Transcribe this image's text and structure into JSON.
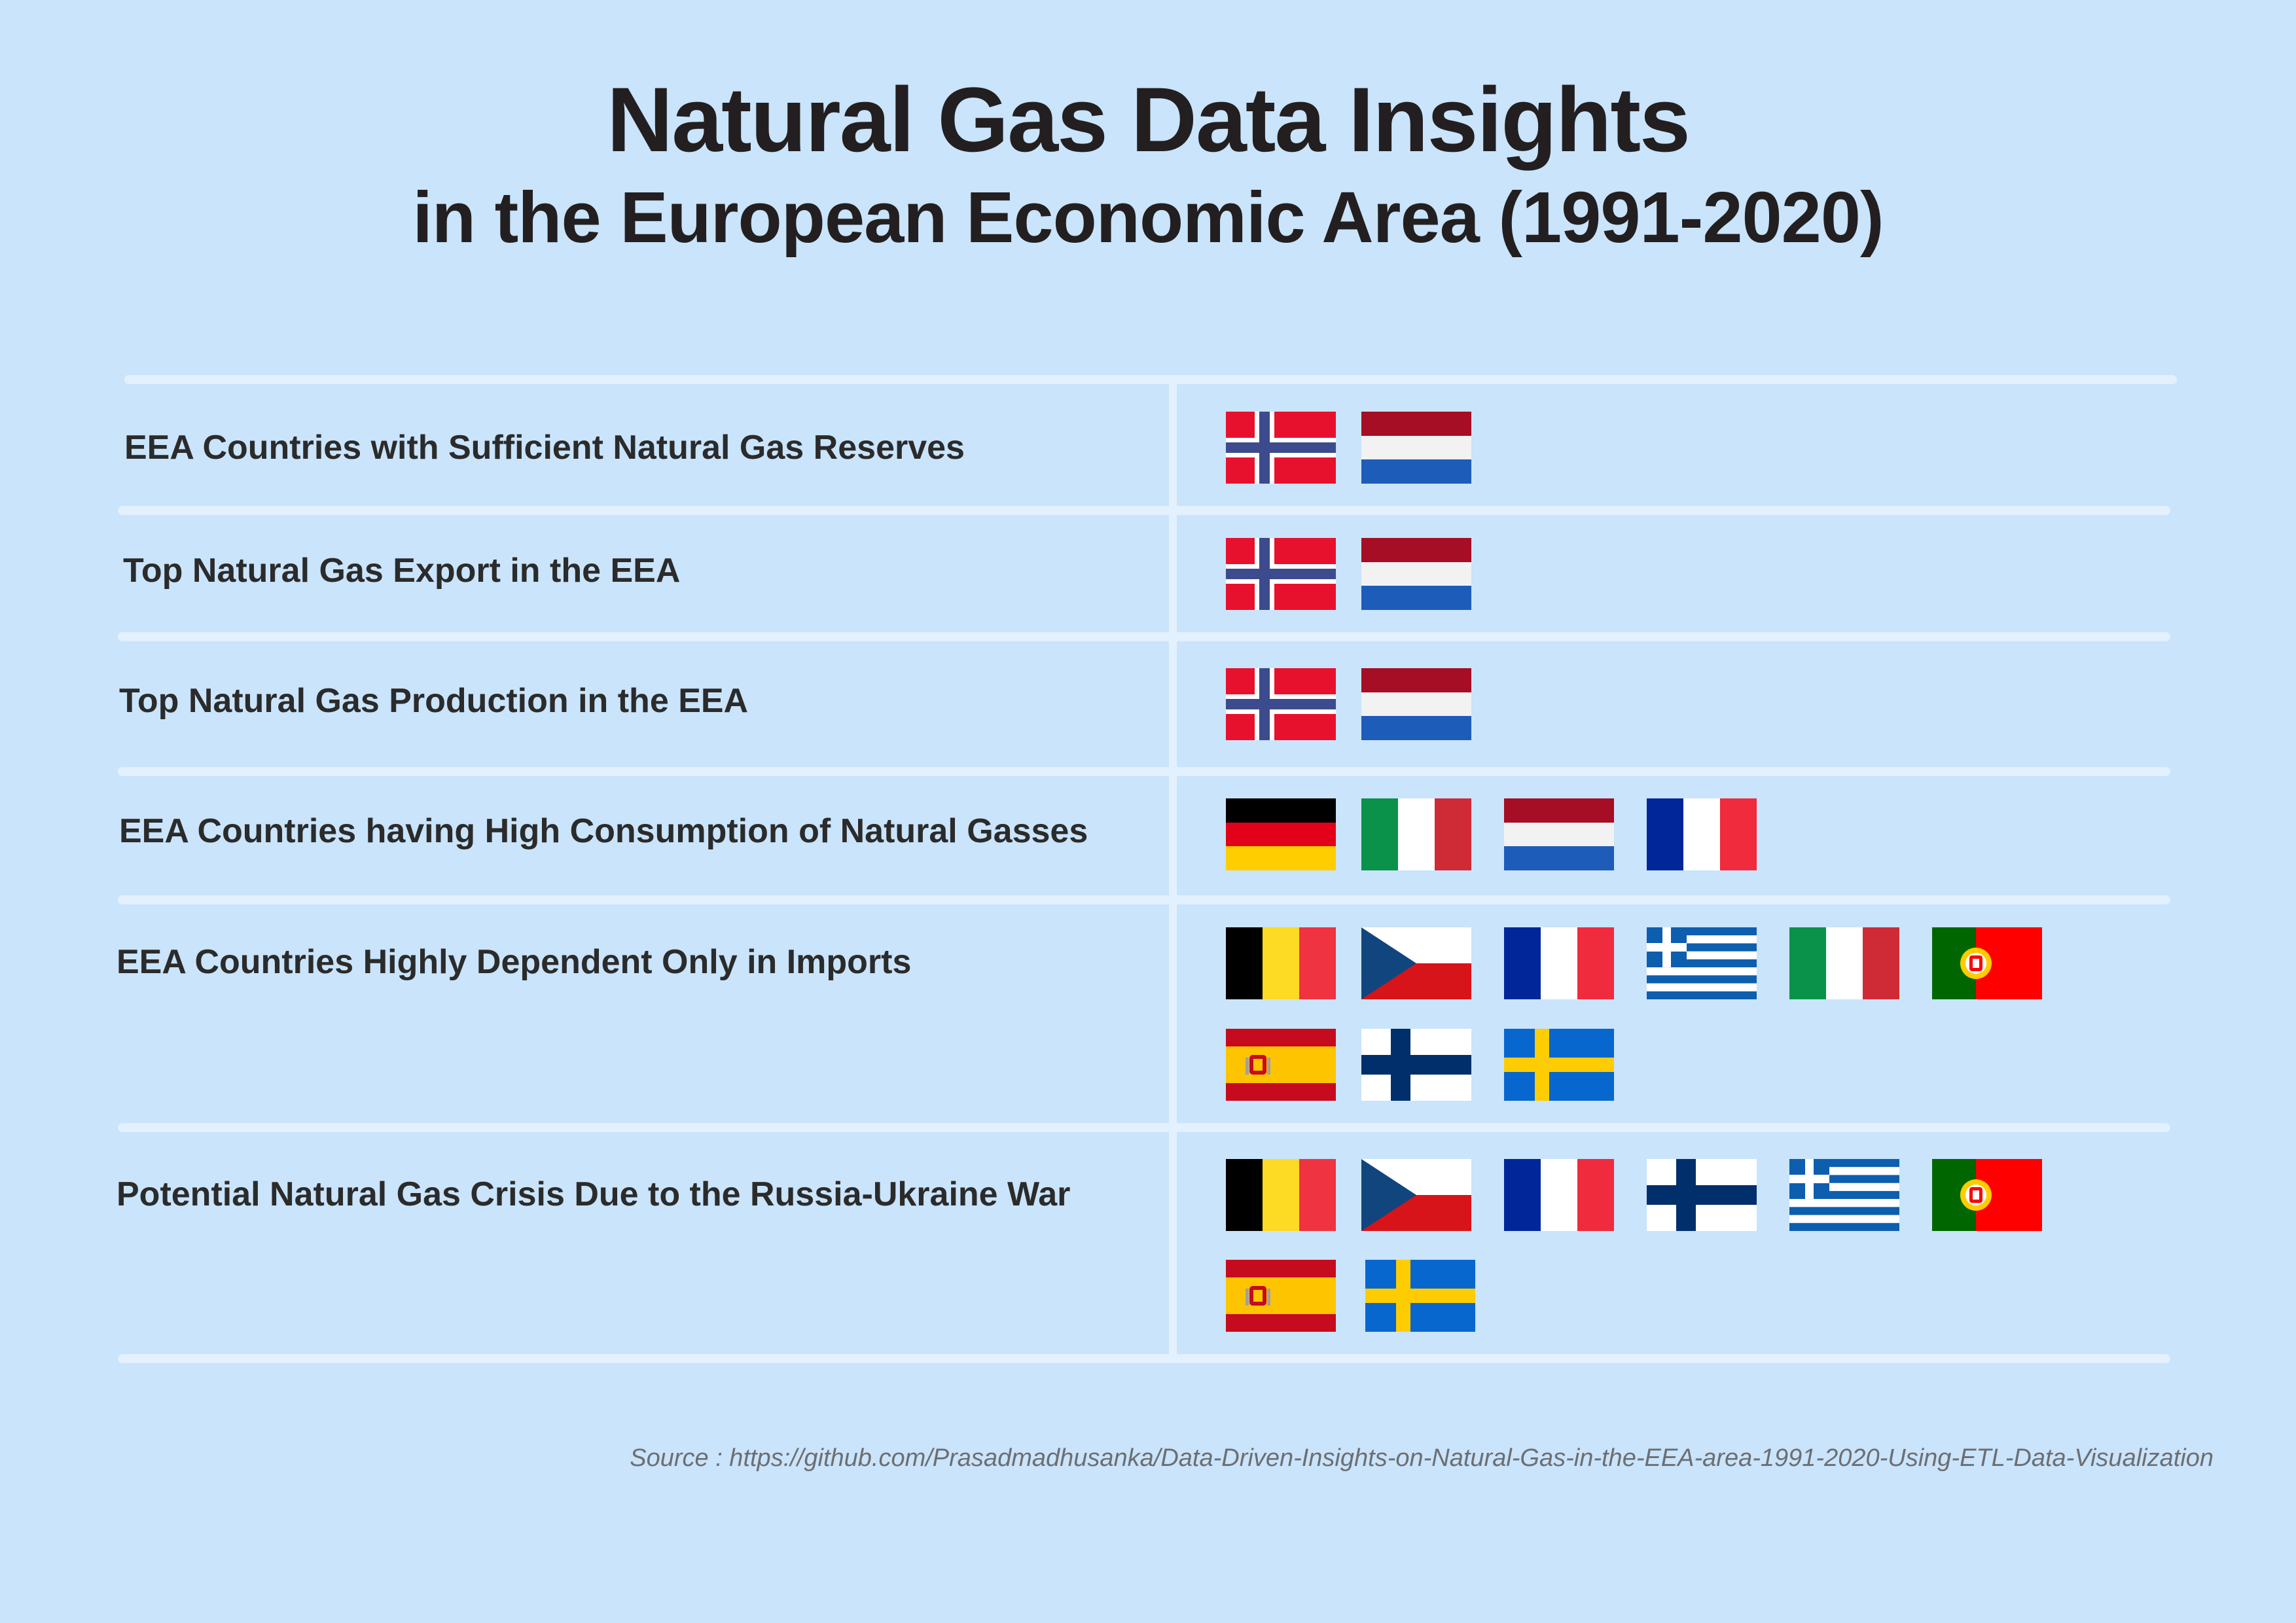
{
  "header": {
    "title": "Natural Gas Data Insights",
    "subtitle": "in the European Economic Area (1991-2020)"
  },
  "rows": [
    {
      "label": "EEA Countries with Sufficient Natural Gas Reserves",
      "flags": [
        "norway",
        "netherlands"
      ]
    },
    {
      "label": "Top Natural Gas Export in the EEA",
      "flags": [
        "norway",
        "netherlands"
      ]
    },
    {
      "label": "Top Natural Gas Production in the EEA",
      "flags": [
        "norway",
        "netherlands"
      ]
    },
    {
      "label": "EEA Countries having High Consumption of Natural Gasses",
      "flags": [
        "germany",
        "italy",
        "netherlands",
        "france"
      ]
    },
    {
      "label": "EEA Countries Highly Dependent Only in Imports",
      "flags": [
        "belgium",
        "czech-republic",
        "france",
        "greece",
        "italy",
        "portugal",
        "spain",
        "finland",
        "sweden"
      ]
    },
    {
      "label": "Potential Natural Gas Crisis Due to the Russia-Ukraine War",
      "flags": [
        "belgium",
        "czech-republic",
        "france",
        "finland",
        "greece",
        "portugal",
        "spain",
        "sweden"
      ]
    }
  ],
  "footer": {
    "source": "Source : https://github.com/Prasadmadhusanka/Data-Driven-Insights-on-Natural-Gas-in-the-EEA-area-1991-2020-Using-ETL-Data-Visualization"
  },
  "colors": {
    "background": "#c9e4fb",
    "divider": "#e3f0fd",
    "text": "#231f20",
    "source_text": "#6d6e71"
  }
}
